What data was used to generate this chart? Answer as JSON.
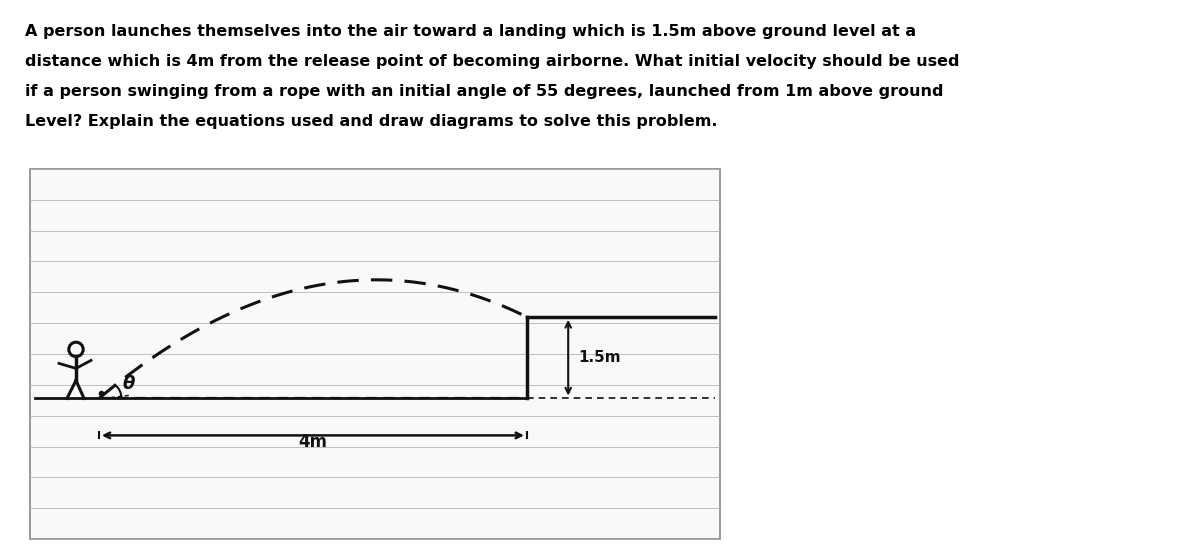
{
  "title_text": "A person launches themselves into the air toward a landing which is 1.5m above ground level at a\ndistance which is 4m from the release point of becoming airborne. What initial velocity should be used\nif a person swinging from a rope with an initial angle of 55 degrees, launched from 1m above ground\nLevel? Explain the equations used and draw diagrams to solve this problem.",
  "title_fontsize": 13.5,
  "bg_color": "#ffffff",
  "ruled_line_color": "#b0b0b0",
  "sketch_color": "#111111",
  "label_15m": "1.5m",
  "label_4m": "4m",
  "label_theta": "θ"
}
